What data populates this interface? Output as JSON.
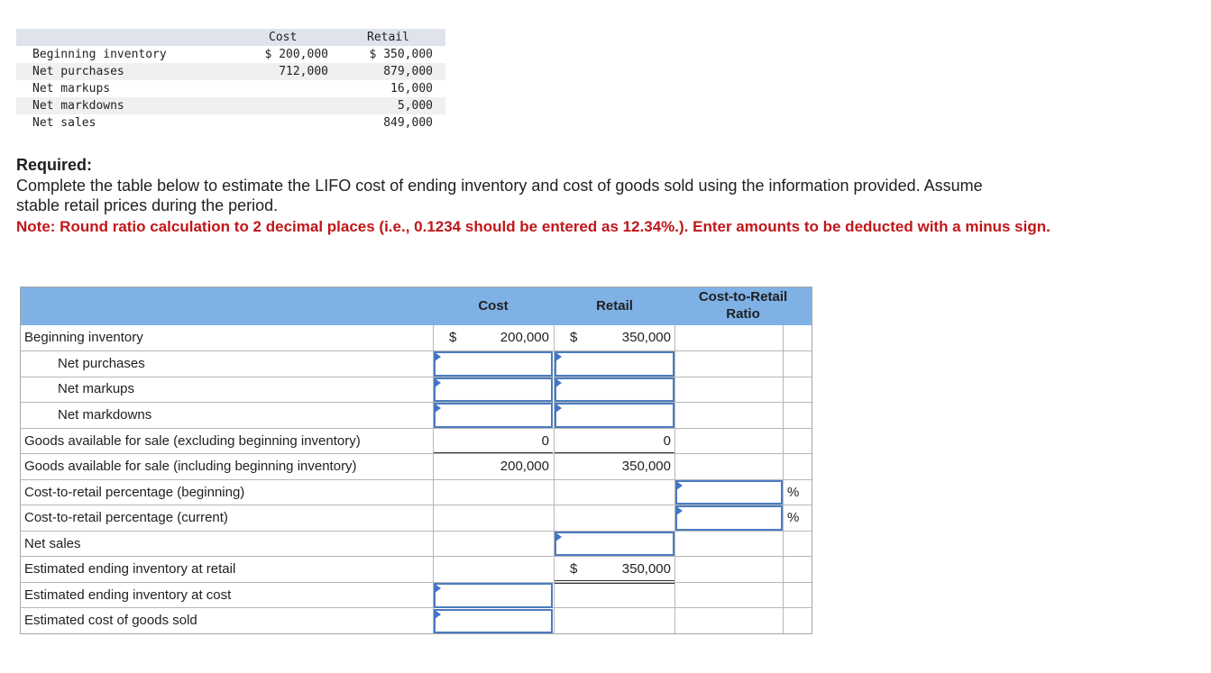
{
  "given": {
    "headers": {
      "cost": "Cost",
      "retail": "Retail"
    },
    "rows": [
      {
        "label": "Beginning inventory",
        "cost": "$ 200,000",
        "retail": "$ 350,000"
      },
      {
        "label": "Net purchases",
        "cost": "712,000",
        "retail": "879,000"
      },
      {
        "label": "Net markups",
        "cost": "",
        "retail": "16,000"
      },
      {
        "label": "Net markdowns",
        "cost": "",
        "retail": "5,000"
      },
      {
        "label": "Net sales",
        "cost": "",
        "retail": "849,000"
      }
    ]
  },
  "instructions": {
    "required_label": "Required:",
    "text": "Complete the table below to estimate the LIFO cost of ending inventory and cost of goods sold using the information provided. Assume stable retail prices during the period.",
    "note": "Note: Round ratio calculation to 2 decimal places (i.e., 0.1234 should be entered as 12.34%.). Enter amounts to be deducted with a minus sign."
  },
  "worksheet": {
    "headers": {
      "cost": "Cost",
      "retail": "Retail",
      "ratio_line1": "Cost-to-Retail",
      "ratio_line2": "Ratio"
    },
    "rows": {
      "beginning_inventory": {
        "label": "Beginning inventory",
        "cost_dollar": "$",
        "cost": "200,000",
        "retail_dollar": "$",
        "retail": "350,000"
      },
      "net_purchases": {
        "label": "Net purchases"
      },
      "net_markups": {
        "label": "Net markups"
      },
      "net_markdowns": {
        "label": "Net markdowns"
      },
      "gafs_excl": {
        "label": "Goods available for sale (excluding beginning inventory)",
        "cost": "0",
        "retail": "0"
      },
      "gafs_incl": {
        "label": "Goods available for sale (including beginning inventory)",
        "cost": "200,000",
        "retail": "350,000"
      },
      "ctr_beginning": {
        "label": "Cost-to-retail percentage (beginning)",
        "pct": "%"
      },
      "ctr_current": {
        "label": "Cost-to-retail percentage (current)",
        "pct": "%"
      },
      "net_sales": {
        "label": "Net sales"
      },
      "ending_inv_retail": {
        "label": "Estimated ending inventory at retail",
        "retail_dollar": "$",
        "retail": "350,000"
      },
      "ending_inv_cost": {
        "label": "Estimated ending inventory at cost"
      },
      "cogs": {
        "label": "Estimated cost of goods sold"
      }
    }
  }
}
